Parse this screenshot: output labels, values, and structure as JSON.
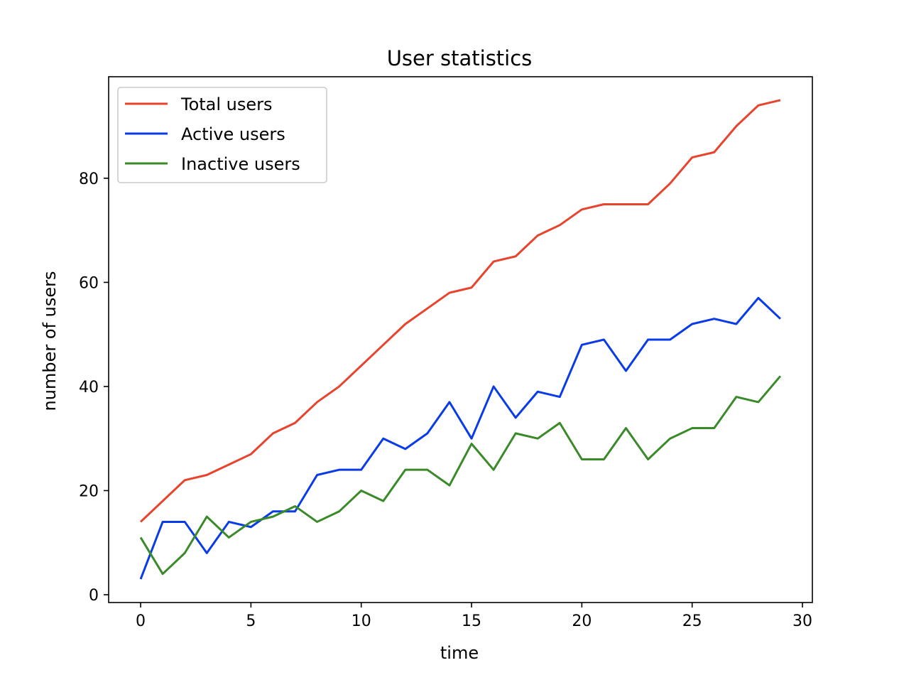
{
  "chart_data": {
    "type": "line",
    "title": "User statistics",
    "xlabel": "time",
    "ylabel": "number of users",
    "xlim": [
      -1.45,
      30.45
    ],
    "ylim": [
      -1.5,
      99.5
    ],
    "xticks": [
      0,
      5,
      10,
      15,
      20,
      25,
      30
    ],
    "yticks": [
      0,
      20,
      40,
      60,
      80
    ],
    "grid": false,
    "legend": "top-left",
    "x": [
      0,
      1,
      2,
      3,
      4,
      5,
      6,
      7,
      8,
      9,
      10,
      11,
      12,
      13,
      14,
      15,
      16,
      17,
      18,
      19,
      20,
      21,
      22,
      23,
      24,
      25,
      26,
      27,
      28,
      29
    ],
    "series": [
      {
        "name": "Total users",
        "color": "#e8432c",
        "values": [
          14,
          18,
          22,
          23,
          25,
          27,
          31,
          33,
          37,
          40,
          44,
          48,
          52,
          55,
          58,
          59,
          64,
          65,
          69,
          71,
          74,
          75,
          75,
          75,
          79,
          84,
          85,
          90,
          94,
          95
        ]
      },
      {
        "name": "Active users",
        "color": "#0a3be8",
        "values": [
          3,
          14,
          14,
          8,
          14,
          13,
          16,
          16,
          23,
          24,
          24,
          30,
          28,
          31,
          37,
          30,
          40,
          34,
          39,
          38,
          48,
          49,
          43,
          49,
          49,
          52,
          53,
          52,
          57,
          53
        ]
      },
      {
        "name": "Inactive users",
        "color": "#3a8a2a",
        "values": [
          11,
          4,
          8,
          15,
          11,
          14,
          15,
          17,
          14,
          16,
          20,
          18,
          24,
          24,
          21,
          29,
          24,
          31,
          30,
          33,
          26,
          26,
          32,
          26,
          30,
          32,
          32,
          38,
          37,
          42
        ]
      }
    ]
  }
}
